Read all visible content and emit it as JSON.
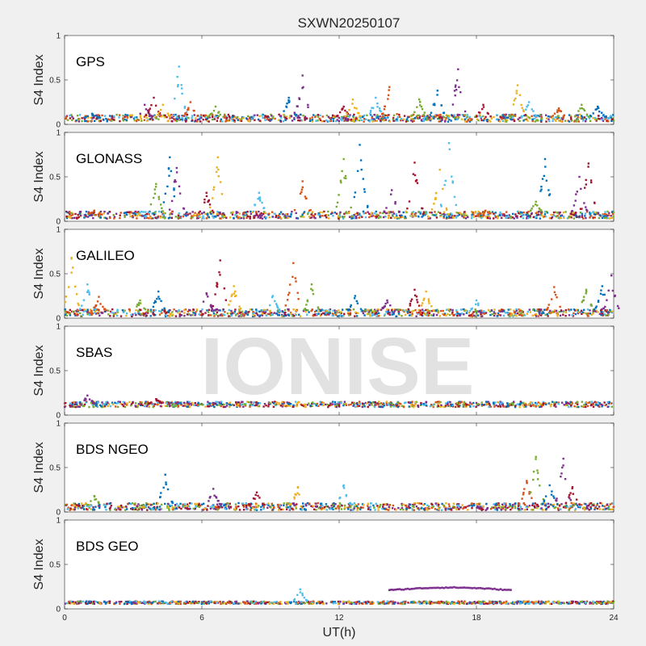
{
  "figure": {
    "title": "SXWN20250107",
    "watermark": "IONISE",
    "xlabel": "UT(h)",
    "ylabel": "S4 Index"
  },
  "chart_data": {
    "type": "scatter",
    "title": "SXWN20250107",
    "xlabel": "UT(h)",
    "xlim": [
      0,
      24
    ],
    "xticks": [
      "0",
      "6",
      "12",
      "18",
      "24"
    ],
    "ylim": [
      0,
      1
    ],
    "yticks": [
      "0",
      "0.5",
      "1"
    ],
    "series_colors": [
      "#0072BD",
      "#D95319",
      "#EDB120",
      "#7E2F8E",
      "#77AC30",
      "#4DBEEE",
      "#A2142F"
    ],
    "panels": [
      {
        "label": "GPS",
        "ylabel": "S4 Index",
        "baseline": 0.07,
        "noise": 0.04,
        "spikes": [
          [
            1.2,
            0.12
          ],
          [
            3.5,
            0.22
          ],
          [
            3.9,
            0.3
          ],
          [
            4.3,
            0.22
          ],
          [
            5.0,
            0.65
          ],
          [
            5.5,
            0.25
          ],
          [
            6.6,
            0.2
          ],
          [
            9.8,
            0.3
          ],
          [
            10.4,
            0.55
          ],
          [
            12.2,
            0.2
          ],
          [
            12.6,
            0.28
          ],
          [
            13.6,
            0.3
          ],
          [
            14.2,
            0.42
          ],
          [
            15.5,
            0.28
          ],
          [
            16.3,
            0.38
          ],
          [
            17.2,
            0.62
          ],
          [
            18.3,
            0.22
          ],
          [
            19.8,
            0.44
          ],
          [
            20.3,
            0.25
          ],
          [
            21.6,
            0.18
          ],
          [
            22.6,
            0.22
          ],
          [
            23.3,
            0.2
          ]
        ]
      },
      {
        "label": "GLONASS",
        "ylabel": "S4 Index",
        "baseline": 0.07,
        "noise": 0.04,
        "spikes": [
          [
            1.3,
            0.12
          ],
          [
            4.0,
            0.42
          ],
          [
            4.6,
            0.72
          ],
          [
            4.9,
            0.6
          ],
          [
            6.2,
            0.32
          ],
          [
            6.7,
            0.72
          ],
          [
            8.5,
            0.32
          ],
          [
            10.4,
            0.45
          ],
          [
            12.2,
            0.7
          ],
          [
            12.9,
            0.86
          ],
          [
            14.3,
            0.35
          ],
          [
            15.3,
            0.66
          ],
          [
            16.4,
            0.58
          ],
          [
            16.8,
            0.88
          ],
          [
            18.4,
            0.12
          ],
          [
            20.6,
            0.22
          ],
          [
            21.0,
            0.7
          ],
          [
            22.5,
            0.5
          ],
          [
            22.9,
            0.65
          ]
        ]
      },
      {
        "label": "GALILEO",
        "ylabel": "S4 Index",
        "baseline": 0.06,
        "noise": 0.04,
        "spikes": [
          [
            0.3,
            0.68
          ],
          [
            1.0,
            0.38
          ],
          [
            1.5,
            0.24
          ],
          [
            3.3,
            0.2
          ],
          [
            4.1,
            0.3
          ],
          [
            6.2,
            0.28
          ],
          [
            6.8,
            0.65
          ],
          [
            7.4,
            0.36
          ],
          [
            9.1,
            0.25
          ],
          [
            10.0,
            0.62
          ],
          [
            10.8,
            0.38
          ],
          [
            12.7,
            0.25
          ],
          [
            14.1,
            0.2
          ],
          [
            15.3,
            0.32
          ],
          [
            15.8,
            0.3
          ],
          [
            18.0,
            0.2
          ],
          [
            21.4,
            0.35
          ],
          [
            22.8,
            0.32
          ],
          [
            23.5,
            0.36
          ],
          [
            23.9,
            0.48
          ]
        ]
      },
      {
        "label": "SBAS",
        "ylabel": "S4 Index",
        "baseline": 0.12,
        "noise": 0.03,
        "spikes": [
          [
            1.0,
            0.22
          ],
          [
            4.0,
            0.18
          ]
        ]
      },
      {
        "label": "BDS NGEO",
        "ylabel": "S4 Index",
        "baseline": 0.06,
        "noise": 0.04,
        "spikes": [
          [
            1.3,
            0.18
          ],
          [
            4.4,
            0.42
          ],
          [
            6.5,
            0.26
          ],
          [
            8.4,
            0.22
          ],
          [
            10.2,
            0.28
          ],
          [
            12.2,
            0.3
          ],
          [
            20.2,
            0.35
          ],
          [
            20.6,
            0.62
          ],
          [
            21.2,
            0.3
          ],
          [
            21.8,
            0.6
          ],
          [
            22.2,
            0.28
          ]
        ]
      },
      {
        "label": "BDS GEO",
        "ylabel": "S4 Index",
        "baseline": 0.07,
        "noise": 0.015,
        "spikes": [
          [
            10.3,
            0.22
          ]
        ],
        "arc": {
          "x_start": 14.2,
          "x_end": 19.5,
          "y": 0.21
        }
      }
    ]
  }
}
